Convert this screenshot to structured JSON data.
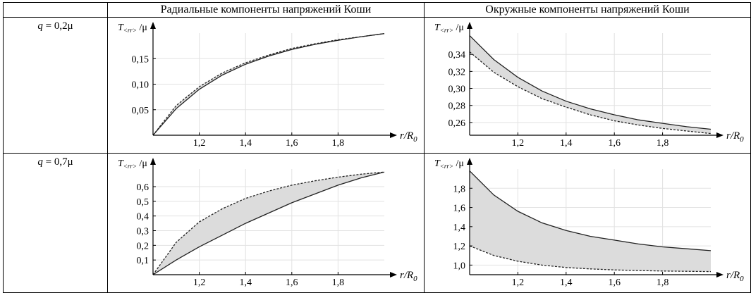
{
  "headers": {
    "col_radial": "Радиальные компоненты напряжений Коши",
    "col_hoop": "Окружные компоненты  напряжений Коши"
  },
  "rows": [
    {
      "q_symbol": "q",
      "q_value": " = 0,2μ"
    },
    {
      "q_symbol": "q",
      "q_value": " = 0,7μ"
    }
  ],
  "axis_text": {
    "x_main": "r/R",
    "x_sub": "0",
    "y_radial_main": "T",
    "y_radial_sub": "<rr>",
    "y_hoop_sub": "<rr>",
    "y_tail": "/μ"
  },
  "chart_data": [
    {
      "type": "area",
      "row": "q = 0,2μ",
      "component": "radial",
      "x_range": [
        1.0,
        2.0
      ],
      "ylim": [
        0,
        0.2
      ],
      "xticks": [
        "1,2",
        "1,4",
        "1,6",
        "1,8"
      ],
      "yticks": [
        "0,05",
        "0,10",
        "0,15"
      ],
      "series": [
        {
          "style": "solid",
          "x": [
            1.0,
            1.1,
            1.2,
            1.3,
            1.4,
            1.5,
            1.6,
            1.7,
            1.8,
            1.9,
            2.0
          ],
          "y": [
            0.0,
            0.052,
            0.09,
            0.118,
            0.139,
            0.155,
            0.168,
            0.178,
            0.186,
            0.193,
            0.199
          ]
        },
        {
          "style": "dashed",
          "x": [
            1.0,
            1.1,
            1.2,
            1.3,
            1.4,
            1.5,
            1.6,
            1.7,
            1.8,
            1.9,
            2.0
          ],
          "y": [
            0.0,
            0.058,
            0.095,
            0.122,
            0.142,
            0.157,
            0.17,
            0.179,
            0.187,
            0.193,
            0.199
          ]
        }
      ]
    },
    {
      "type": "area",
      "row": "q = 0,2μ",
      "component": "hoop",
      "x_range": [
        1.0,
        2.0
      ],
      "ylim": [
        0.245,
        0.365
      ],
      "xticks": [
        "1,2",
        "1,4",
        "1,6",
        "1,8"
      ],
      "yticks": [
        "0,26",
        "0,28",
        "0,30",
        "0,32",
        "0,34"
      ],
      "series": [
        {
          "style": "solid",
          "x": [
            1.0,
            1.1,
            1.2,
            1.3,
            1.4,
            1.5,
            1.6,
            1.7,
            1.8,
            1.9,
            2.0
          ],
          "y": [
            0.362,
            0.334,
            0.313,
            0.297,
            0.285,
            0.276,
            0.269,
            0.263,
            0.259,
            0.255,
            0.252
          ]
        },
        {
          "style": "dashed",
          "x": [
            1.0,
            1.1,
            1.2,
            1.3,
            1.4,
            1.5,
            1.6,
            1.7,
            1.8,
            1.9,
            2.0
          ],
          "y": [
            0.343,
            0.319,
            0.302,
            0.288,
            0.278,
            0.269,
            0.262,
            0.257,
            0.253,
            0.25,
            0.247
          ]
        }
      ]
    },
    {
      "type": "area",
      "row": "q = 0,7μ",
      "component": "radial",
      "x_range": [
        1.0,
        2.0
      ],
      "ylim": [
        0,
        0.72
      ],
      "xticks": [
        "1,2",
        "1,4",
        "1,6",
        "1,8"
      ],
      "yticks": [
        "0,1",
        "0,2",
        "0,3",
        "0,4",
        "0,5",
        "0,6"
      ],
      "series": [
        {
          "style": "solid",
          "x": [
            1.0,
            1.1,
            1.2,
            1.3,
            1.4,
            1.5,
            1.6,
            1.7,
            1.8,
            1.9,
            2.0
          ],
          "y": [
            0.0,
            0.1,
            0.19,
            0.27,
            0.35,
            0.42,
            0.49,
            0.55,
            0.61,
            0.66,
            0.7
          ]
        },
        {
          "style": "dashed",
          "x": [
            1.0,
            1.1,
            1.2,
            1.3,
            1.4,
            1.5,
            1.6,
            1.7,
            1.8,
            1.9,
            2.0
          ],
          "y": [
            0.0,
            0.22,
            0.36,
            0.45,
            0.52,
            0.57,
            0.61,
            0.64,
            0.665,
            0.685,
            0.7
          ]
        }
      ]
    },
    {
      "type": "area",
      "row": "q = 0,7μ",
      "component": "hoop",
      "x_range": [
        1.0,
        2.0
      ],
      "ylim": [
        0.9,
        2.0
      ],
      "xticks": [
        "1,2",
        "1,4",
        "1,6",
        "1,8"
      ],
      "yticks": [
        "1,0",
        "1,2",
        "1,4",
        "1,6",
        "1,8"
      ],
      "series": [
        {
          "style": "solid",
          "x": [
            1.0,
            1.1,
            1.2,
            1.3,
            1.4,
            1.5,
            1.6,
            1.7,
            1.8,
            1.9,
            2.0
          ],
          "y": [
            1.98,
            1.73,
            1.56,
            1.44,
            1.36,
            1.3,
            1.26,
            1.22,
            1.19,
            1.17,
            1.15
          ]
        },
        {
          "style": "dashed",
          "x": [
            1.0,
            1.1,
            1.2,
            1.3,
            1.4,
            1.5,
            1.6,
            1.7,
            1.8,
            1.9,
            2.0
          ],
          "y": [
            1.2,
            1.1,
            1.04,
            1.0,
            0.975,
            0.96,
            0.95,
            0.943,
            0.938,
            0.935,
            0.932
          ]
        }
      ]
    }
  ]
}
